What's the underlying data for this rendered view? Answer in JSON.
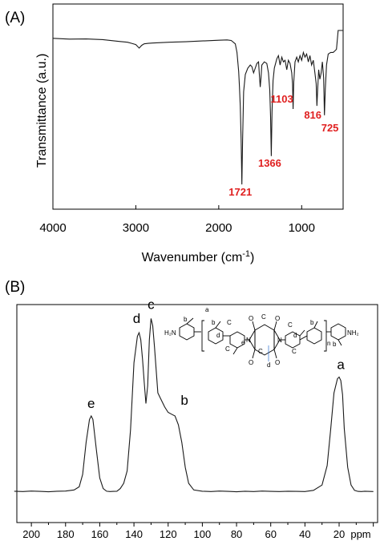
{
  "chart_data": [
    {
      "type": "line",
      "panel_label": "(A)",
      "xlabel": "Wavenumber (cm",
      "xlabel_sup": "-1",
      "xlabel_close": ")",
      "ylabel": "Transmittance (a.u.)",
      "xlim": [
        4000,
        500
      ],
      "ylim": [
        0,
        100
      ],
      "x_ticks": [
        4000,
        3000,
        2000,
        1000
      ],
      "x_tick_labels": [
        "4000",
        "3000",
        "2000",
        "1000"
      ],
      "grid": false,
      "annotations": [
        {
          "label": "1721",
          "x": 1721
        },
        {
          "label": "1366",
          "x": 1366
        },
        {
          "label": "1103",
          "x": 1103
        },
        {
          "label": "816",
          "x": 816
        },
        {
          "label": "725",
          "x": 725
        }
      ],
      "series": [
        {
          "x": [
            4000,
            3800,
            3600,
            3400,
            3200,
            3100,
            3050,
            3000,
            2960,
            2930,
            2900,
            2850,
            2800,
            2600,
            2400,
            2200,
            2000,
            1900,
            1850,
            1800,
            1780,
            1760,
            1750,
            1740,
            1730,
            1721,
            1712,
            1700,
            1680,
            1650,
            1620,
            1600,
            1580,
            1560,
            1540,
            1520,
            1510,
            1500,
            1490,
            1480,
            1450,
            1420,
            1400,
            1385,
            1375,
            1366,
            1358,
            1345,
            1330,
            1300,
            1280,
            1260,
            1240,
            1220,
            1200,
            1180,
            1160,
            1140,
            1120,
            1110,
            1103,
            1096,
            1080,
            1060,
            1040,
            1020,
            1000,
            980,
            960,
            940,
            920,
            900,
            880,
            860,
            840,
            825,
            816,
            807,
            795,
            780,
            765,
            750,
            735,
            725,
            715,
            700,
            680,
            650,
            620,
            600,
            580,
            560,
            540,
            520,
            500
          ],
          "y": [
            95,
            94.5,
            94.6,
            94.2,
            93,
            92.5,
            91.8,
            91,
            88.8,
            90.5,
            91.5,
            91.8,
            92,
            92.5,
            92.8,
            93.3,
            93.8,
            94,
            93.6,
            91.5,
            86,
            74,
            64,
            52,
            30,
            2,
            30,
            61,
            72,
            76,
            78,
            77,
            73,
            76,
            79,
            80,
            72,
            64,
            70,
            78,
            80,
            79,
            73,
            62,
            45,
            20,
            48,
            68,
            76,
            82,
            84,
            78,
            83,
            80,
            81,
            75,
            81,
            79,
            73,
            66,
            50,
            67,
            80,
            83,
            80,
            84,
            81,
            86,
            83,
            85,
            80,
            84,
            78,
            81,
            73,
            66,
            52,
            62,
            75,
            69,
            73,
            80,
            70,
            46,
            63,
            78,
            85,
            86,
            86,
            87,
            88,
            100,
            100,
            100,
            100
          ]
        }
      ]
    },
    {
      "type": "line",
      "panel_label": "(B)",
      "xlabel": "ppm",
      "xlim": [
        210,
        0
      ],
      "x_ticks": [
        200,
        180,
        160,
        140,
        120,
        100,
        80,
        60,
        40,
        20
      ],
      "x_tick_labels": [
        "200",
        "180",
        "160",
        "140",
        "120",
        "100",
        "80",
        "60",
        "40",
        "20"
      ],
      "grid": false,
      "peak_labels": [
        {
          "label": "e",
          "x": 165
        },
        {
          "label": "d",
          "x": 137
        },
        {
          "label": "c",
          "x": 130
        },
        {
          "label": "b",
          "x": 117
        },
        {
          "label": "a",
          "x": 19
        }
      ],
      "structure": {
        "nh2_left": "H₂N",
        "nh2_right": "NH₂",
        "n_subscript": "n",
        "label_a": "a",
        "label_b": "b",
        "label_c": "C",
        "label_d": "d",
        "label_e": "e",
        "color_a": "#2eaa58",
        "color_c": "#2c6fd0",
        "color_d": "#8a3fc8",
        "color_e": "#e02020",
        "color_n": "#2c6fd0",
        "color_o": "#e02020"
      },
      "series": [
        {
          "x": [
            210,
            205,
            200,
            195,
            190,
            185,
            180,
            175,
            172,
            170,
            168,
            166,
            165,
            164,
            162,
            160,
            158,
            156,
            154,
            152,
            150,
            148,
            146,
            144,
            142,
            140,
            138,
            137,
            136,
            135,
            134,
            133,
            132,
            131,
            130,
            129,
            128,
            126,
            124,
            122,
            120,
            118,
            116,
            114,
            112,
            110,
            108,
            105,
            100,
            95,
            90,
            85,
            80,
            75,
            70,
            65,
            60,
            55,
            50,
            45,
            40,
            35,
            30,
            27,
            25,
            23,
            21,
            20,
            19,
            18,
            17,
            15,
            13,
            11,
            9,
            7,
            5,
            0
          ],
          "y": [
            0.5,
            0.3,
            0.6,
            0.4,
            0.2,
            0.5,
            0.6,
            1.2,
            3,
            10,
            28,
            41,
            43,
            41,
            24,
            8,
            2,
            0.5,
            0.3,
            0.4,
            0.5,
            2,
            5,
            12,
            35,
            73,
            88,
            90,
            86,
            75,
            62,
            50,
            60,
            86,
            98,
            94,
            82,
            56,
            52,
            48,
            45,
            44,
            43,
            38,
            28,
            14,
            5,
            1.2,
            0.5,
            0.3,
            0.6,
            0.4,
            0.2,
            0.5,
            0.3,
            0.6,
            0.4,
            0.3,
            0.5,
            0.4,
            0.3,
            1,
            4,
            15,
            35,
            56,
            64,
            65,
            63,
            55,
            36,
            14,
            4,
            1,
            0.4,
            0.3,
            0.5,
            0.3
          ]
        }
      ]
    }
  ]
}
